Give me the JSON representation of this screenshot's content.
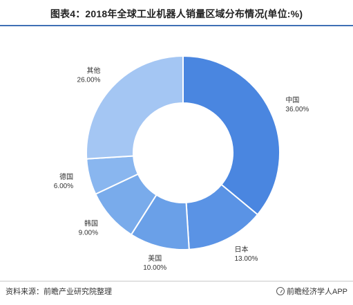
{
  "title": "图表4：2018年全球工业机器人销量区域分布情况(单位:%)",
  "source": "资料来源：前瞻产业研究院整理",
  "app_label": "前瞻经济学人APP",
  "chart_data": {
    "type": "pie",
    "donut": true,
    "title": "图表4：2018年全球工业机器人销量区域分布情况(单位:%)",
    "categories": [
      "中国",
      "日本",
      "美国",
      "韩国",
      "德国",
      "其他"
    ],
    "values": [
      36.0,
      13.0,
      10.0,
      9.0,
      6.0,
      26.0
    ],
    "value_labels": [
      "36.00%",
      "13.00%",
      "10.00%",
      "9.00%",
      "6.00%",
      "26.00%"
    ],
    "colors": [
      "#4a86e0",
      "#5a93e5",
      "#6aa0e8",
      "#79abeb",
      "#89b6ef",
      "#a4c6f3"
    ],
    "start": "top",
    "direction": "clockwise"
  }
}
